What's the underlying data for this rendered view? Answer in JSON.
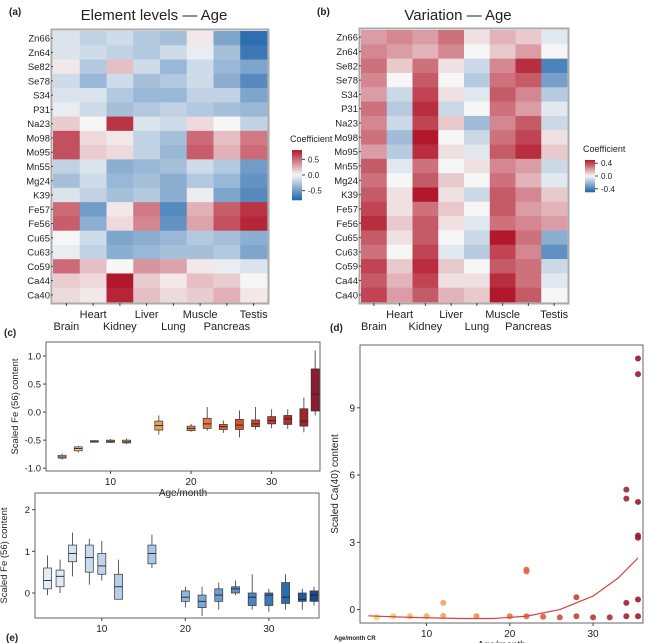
{
  "chart_data": [
    {
      "type": "heatmap",
      "panel_label": "(a)",
      "title": "Element levels — Age",
      "rows": [
        "Zn66",
        "Zn64",
        "Se82",
        "Se78",
        "S34",
        "P31",
        "Na23",
        "Mo98",
        "Mo95",
        "Mn55",
        "Mg24",
        "K39",
        "Fe57",
        "Fe56",
        "Cu65",
        "Cu63",
        "Co59",
        "Ca44",
        "Ca40"
      ],
      "columns": [
        "Brain",
        "Heart",
        "Kidney",
        "Liver",
        "Lung",
        "Muscle",
        "Pancreas",
        "Testis"
      ],
      "values": [
        [
          -0.1,
          -0.2,
          -0.15,
          -0.25,
          -0.3,
          0.05,
          -0.45,
          -0.75
        ],
        [
          -0.1,
          -0.15,
          -0.2,
          -0.25,
          -0.15,
          -0.05,
          -0.3,
          -0.7
        ],
        [
          0.05,
          -0.25,
          0.2,
          -0.15,
          -0.35,
          -0.15,
          -0.35,
          -0.45
        ],
        [
          -0.15,
          -0.35,
          -0.15,
          -0.3,
          -0.25,
          -0.15,
          -0.4,
          -0.6
        ],
        [
          -0.1,
          -0.1,
          -0.25,
          -0.35,
          -0.35,
          -0.2,
          -0.2,
          -0.45
        ],
        [
          -0.05,
          -0.15,
          -0.3,
          -0.25,
          -0.2,
          -0.25,
          -0.3,
          -0.35
        ],
        [
          0.15,
          0.0,
          0.7,
          -0.1,
          -0.15,
          0.1,
          0.0,
          -0.2
        ],
        [
          0.6,
          0.1,
          0.05,
          -0.2,
          -0.3,
          0.5,
          0.2,
          0.45
        ],
        [
          0.6,
          0.15,
          0.1,
          -0.2,
          -0.35,
          0.55,
          0.25,
          0.5
        ],
        [
          -0.2,
          -0.1,
          -0.4,
          -0.35,
          -0.3,
          -0.15,
          -0.25,
          -0.5
        ],
        [
          -0.3,
          -0.15,
          -0.35,
          -0.3,
          -0.4,
          -0.25,
          -0.35,
          -0.55
        ],
        [
          -0.1,
          -0.2,
          -0.3,
          -0.25,
          -0.4,
          -0.05,
          -0.45,
          -0.6
        ],
        [
          0.5,
          -0.5,
          0.05,
          0.45,
          -0.6,
          0.25,
          0.55,
          0.7
        ],
        [
          0.55,
          -0.4,
          0.1,
          0.4,
          -0.55,
          0.3,
          0.6,
          0.75
        ],
        [
          0.0,
          -0.15,
          -0.45,
          -0.4,
          -0.35,
          -0.25,
          -0.3,
          -0.4
        ],
        [
          -0.05,
          -0.2,
          -0.4,
          -0.35,
          -0.3,
          -0.3,
          -0.25,
          -0.45
        ],
        [
          0.5,
          0.2,
          0.0,
          0.35,
          0.3,
          0.05,
          -0.05,
          -0.1
        ],
        [
          0.15,
          0.1,
          0.8,
          0.15,
          0.05,
          0.2,
          0.15,
          0.0
        ],
        [
          0.1,
          0.05,
          0.75,
          0.2,
          0.1,
          0.15,
          0.25,
          0.05
        ]
      ],
      "legend_title": "Coefficient",
      "legend_ticks": [
        0.5,
        0.0,
        -0.5
      ],
      "range": [
        -0.8,
        0.8
      ],
      "legend_position": "right"
    },
    {
      "type": "heatmap",
      "panel_label": "(b)",
      "title": "Variation — Age",
      "rows": [
        "Zn66",
        "Zn64",
        "Se82",
        "Se78",
        "S34",
        "P31",
        "Na23",
        "Mo98",
        "Mo95",
        "Mn55",
        "Mg24",
        "K39",
        "Fe57",
        "Fe56",
        "Cu65",
        "Cu63",
        "Co59",
        "Ca44",
        "Ca40"
      ],
      "columns": [
        "Brain",
        "Heart",
        "Kidney",
        "Liver",
        "Lung",
        "Muscle",
        "Pancreas",
        "Testis"
      ],
      "values": [
        [
          0.2,
          0.25,
          0.2,
          0.3,
          0.05,
          0.15,
          0.1,
          -0.05
        ],
        [
          0.25,
          0.2,
          0.15,
          0.25,
          0.0,
          0.1,
          0.2,
          0.0
        ],
        [
          0.3,
          0.1,
          0.3,
          0.05,
          -0.1,
          0.25,
          0.45,
          -0.4
        ],
        [
          0.25,
          0.0,
          0.35,
          0.0,
          -0.15,
          0.3,
          0.35,
          -0.3
        ],
        [
          0.2,
          -0.1,
          0.4,
          0.05,
          -0.05,
          0.35,
          0.25,
          -0.15
        ],
        [
          0.3,
          -0.15,
          0.45,
          -0.1,
          0.0,
          0.3,
          0.2,
          -0.05
        ],
        [
          0.25,
          -0.1,
          0.4,
          0.1,
          -0.2,
          0.25,
          0.35,
          -0.1
        ],
        [
          0.3,
          -0.2,
          0.5,
          0.0,
          -0.1,
          0.3,
          0.4,
          0.05
        ],
        [
          0.2,
          -0.15,
          0.45,
          0.05,
          -0.05,
          0.35,
          0.45,
          0.1
        ],
        [
          0.35,
          -0.05,
          0.3,
          0.0,
          0.05,
          0.25,
          0.2,
          -0.1
        ],
        [
          0.3,
          0.0,
          0.35,
          0.1,
          0.0,
          0.3,
          0.15,
          -0.05
        ],
        [
          0.35,
          0.05,
          0.5,
          0.05,
          -0.1,
          0.35,
          0.25,
          0.1
        ],
        [
          0.4,
          0.05,
          0.3,
          0.1,
          0.0,
          0.35,
          0.2,
          0.15
        ],
        [
          0.45,
          0.1,
          0.35,
          0.05,
          -0.05,
          0.3,
          0.25,
          0.2
        ],
        [
          0.35,
          0.05,
          0.35,
          0.0,
          -0.1,
          0.5,
          0.3,
          -0.25
        ],
        [
          0.3,
          0.0,
          0.4,
          -0.05,
          -0.15,
          0.4,
          0.25,
          -0.35
        ],
        [
          0.4,
          0.1,
          0.45,
          0.1,
          0.0,
          0.35,
          0.3,
          -0.1
        ],
        [
          0.35,
          0.15,
          0.4,
          0.05,
          0.05,
          0.45,
          0.3,
          -0.05
        ],
        [
          0.4,
          0.2,
          0.35,
          0.15,
          0.1,
          0.5,
          0.35,
          0.0
        ]
      ],
      "legend_title": "Coefficient",
      "legend_ticks": [
        0.4,
        0.0,
        -0.4
      ],
      "range": [
        -0.5,
        0.5
      ],
      "legend_position": "right"
    },
    {
      "type": "box",
      "panel_label": "(c)",
      "xlabel": "Age/month",
      "ylabel": "Scaled Fe (56) content",
      "xlim": [
        2,
        36
      ],
      "ylim": [
        -1.05,
        1.25
      ],
      "xticks": [
        10,
        20,
        30
      ],
      "yticks": [
        -1.0,
        -0.5,
        0.0,
        0.5,
        1.0
      ],
      "yticklabels": [
        "-1.0",
        "-0.5",
        "0.0",
        "0.5",
        "1.0"
      ],
      "boxes": [
        {
          "x": 4,
          "min": -0.85,
          "q1": -0.82,
          "median": -0.8,
          "q3": -0.77,
          "max": -0.74,
          "color": "#f3d49a"
        },
        {
          "x": 6,
          "min": -0.72,
          "q1": -0.69,
          "median": -0.65,
          "q3": -0.62,
          "max": -0.6,
          "color": "#f5c77d"
        },
        {
          "x": 8,
          "min": -0.54,
          "q1": -0.53,
          "median": -0.52,
          "q3": -0.51,
          "max": -0.5,
          "color": "#f2bd6f"
        },
        {
          "x": 10,
          "min": -0.55,
          "q1": -0.54,
          "median": -0.52,
          "q3": -0.5,
          "max": -0.48,
          "color": "#f0b466"
        },
        {
          "x": 12,
          "min": -0.57,
          "q1": -0.55,
          "median": -0.53,
          "q3": -0.5,
          "max": -0.47,
          "color": "#eeaa5e"
        },
        {
          "x": 16,
          "min": -0.4,
          "q1": -0.32,
          "median": -0.24,
          "q3": -0.16,
          "max": -0.06,
          "color": "#eda055"
        },
        {
          "x": 20,
          "min": -0.35,
          "q1": -0.33,
          "median": -0.29,
          "q3": -0.25,
          "max": -0.21,
          "color": "#ea8a45"
        },
        {
          "x": 22,
          "min": -0.33,
          "q1": -0.29,
          "median": -0.21,
          "q3": -0.11,
          "max": 0.09,
          "color": "#e67a3c"
        },
        {
          "x": 24,
          "min": -0.37,
          "q1": -0.31,
          "median": -0.26,
          "q3": -0.22,
          "max": -0.15,
          "color": "#e26a35"
        },
        {
          "x": 26,
          "min": -0.45,
          "q1": -0.31,
          "median": -0.23,
          "q3": -0.13,
          "max": 0.03,
          "color": "#da5630"
        },
        {
          "x": 28,
          "min": -0.31,
          "q1": -0.26,
          "median": -0.21,
          "q3": -0.14,
          "max": 0.09,
          "color": "#d0472c"
        },
        {
          "x": 30,
          "min": -0.29,
          "q1": -0.21,
          "median": -0.15,
          "q3": -0.08,
          "max": 0.05,
          "color": "#c53a2a"
        },
        {
          "x": 32,
          "min": -0.3,
          "q1": -0.22,
          "median": -0.12,
          "q3": -0.06,
          "max": 0.05,
          "color": "#b42e2a"
        },
        {
          "x": 34,
          "min": -0.36,
          "q1": -0.25,
          "median": -0.16,
          "q3": 0.06,
          "max": 0.26,
          "color": "#a0262c"
        },
        {
          "x": 35.4,
          "min": -0.06,
          "q1": 0.02,
          "median": 0.32,
          "q3": 0.77,
          "max": 1.1,
          "color": "#8e1b2e"
        }
      ]
    },
    {
      "type": "box",
      "panel_label": "",
      "xlabel": "",
      "ylabel": "Scaled Fe (56) content",
      "xlim": [
        2,
        36
      ],
      "ylim": [
        -0.6,
        2.4
      ],
      "xticks": [
        10,
        20,
        30
      ],
      "yticks": [
        0,
        1,
        2
      ],
      "yticklabels": [
        "0",
        "1",
        "2"
      ],
      "boxes": [
        {
          "x": 3.5,
          "min": -0.05,
          "q1": 0.1,
          "median": 0.3,
          "q3": 0.6,
          "max": 0.9,
          "color": "#e4eef8"
        },
        {
          "x": 5,
          "min": 0.0,
          "q1": 0.15,
          "median": 0.4,
          "q3": 0.55,
          "max": 0.8,
          "color": "#dfeaf6"
        },
        {
          "x": 6.5,
          "min": 0.4,
          "q1": 0.75,
          "median": 0.95,
          "q3": 1.15,
          "max": 1.45,
          "color": "#d4e3f2"
        },
        {
          "x": 8.5,
          "min": 0.2,
          "q1": 0.5,
          "median": 0.85,
          "q3": 1.15,
          "max": 1.3,
          "color": "#c9dcef"
        },
        {
          "x": 10,
          "min": 0.3,
          "q1": 0.45,
          "median": 0.65,
          "q3": 0.95,
          "max": 1.25,
          "color": "#bfd5ec"
        },
        {
          "x": 12,
          "min": -0.15,
          "q1": -0.15,
          "median": 0.15,
          "q3": 0.45,
          "max": 0.8,
          "color": "#b5cfe9"
        },
        {
          "x": 16,
          "min": 0.6,
          "q1": 0.7,
          "median": 0.95,
          "q3": 1.15,
          "max": 1.4,
          "color": "#a9c8e6"
        },
        {
          "x": 20,
          "min": -0.35,
          "q1": -0.2,
          "median": -0.1,
          "q3": 0.05,
          "max": 0.15,
          "color": "#8fb8de"
        },
        {
          "x": 22,
          "min": -0.55,
          "q1": -0.35,
          "median": -0.2,
          "q3": -0.05,
          "max": 0.15,
          "color": "#7aa9d6"
        },
        {
          "x": 24,
          "min": -0.4,
          "q1": -0.2,
          "median": -0.05,
          "q3": 0.1,
          "max": 0.25,
          "color": "#6a9fd0"
        },
        {
          "x": 26,
          "min": -0.05,
          "q1": 0.0,
          "median": 0.1,
          "q3": 0.15,
          "max": 0.3,
          "color": "#5a93c9"
        },
        {
          "x": 28,
          "min": -0.4,
          "q1": -0.3,
          "median": -0.1,
          "q3": 0.0,
          "max": 0.45,
          "color": "#4986c1"
        },
        {
          "x": 30,
          "min": -0.45,
          "q1": -0.3,
          "median": -0.05,
          "q3": 0.0,
          "max": 0.1,
          "color": "#3b79b8"
        },
        {
          "x": 32,
          "min": -0.4,
          "q1": -0.25,
          "median": -0.1,
          "q3": 0.25,
          "max": 0.45,
          "color": "#2e6aad"
        },
        {
          "x": 34,
          "min": -0.4,
          "q1": -0.2,
          "median": -0.15,
          "q3": 0.0,
          "max": 0.1,
          "color": "#245aa0"
        },
        {
          "x": 35.4,
          "min": -0.3,
          "q1": -0.2,
          "median": -0.05,
          "q3": 0.05,
          "max": 0.15,
          "color": "#1c4a8e"
        }
      ]
    },
    {
      "type": "scatter",
      "panel_label": "(d)",
      "xlabel": "Age/month",
      "ylabel": "Scaled Ca(40) content",
      "xlim": [
        2,
        36
      ],
      "ylim": [
        -0.6,
        11.8
      ],
      "xticks": [
        10,
        20,
        30
      ],
      "yticks": [
        0,
        3,
        6,
        9
      ],
      "points": [
        {
          "x": 4,
          "y": -0.35
        },
        {
          "x": 6,
          "y": -0.3
        },
        {
          "x": 8,
          "y": -0.3
        },
        {
          "x": 10,
          "y": -0.3
        },
        {
          "x": 12,
          "y": -0.28
        },
        {
          "x": 12,
          "y": 0.3
        },
        {
          "x": 16,
          "y": -0.3
        },
        {
          "x": 20,
          "y": -0.3
        },
        {
          "x": 22,
          "y": -0.3
        },
        {
          "x": 22,
          "y": 1.7
        },
        {
          "x": 22,
          "y": 1.78
        },
        {
          "x": 24,
          "y": -0.32
        },
        {
          "x": 26,
          "y": -0.35
        },
        {
          "x": 28,
          "y": -0.3
        },
        {
          "x": 28,
          "y": 0.55
        },
        {
          "x": 30,
          "y": -0.35
        },
        {
          "x": 32,
          "y": -0.35
        },
        {
          "x": 34,
          "y": -0.3
        },
        {
          "x": 34,
          "y": 0.3
        },
        {
          "x": 34,
          "y": 5.35
        },
        {
          "x": 34,
          "y": 4.95
        },
        {
          "x": 35.4,
          "y": -0.3
        },
        {
          "x": 35.4,
          "y": 0.45
        },
        {
          "x": 35.4,
          "y": 3.2
        },
        {
          "x": 35.4,
          "y": 3.3
        },
        {
          "x": 35.4,
          "y": 4.8
        },
        {
          "x": 35.4,
          "y": 10.5
        },
        {
          "x": 35.4,
          "y": 11.2
        }
      ],
      "trend": [
        {
          "x": 3,
          "y": -0.28
        },
        {
          "x": 8,
          "y": -0.35
        },
        {
          "x": 14,
          "y": -0.4
        },
        {
          "x": 18,
          "y": -0.4
        },
        {
          "x": 22,
          "y": -0.3
        },
        {
          "x": 26,
          "y": 0.0
        },
        {
          "x": 30,
          "y": 0.6
        },
        {
          "x": 33,
          "y": 1.4
        },
        {
          "x": 35.4,
          "y": 2.3
        }
      ],
      "trend_color": "#d8433a"
    }
  ],
  "bottom_panel_label": "(e)",
  "bottom_caption": "Age/month CR"
}
